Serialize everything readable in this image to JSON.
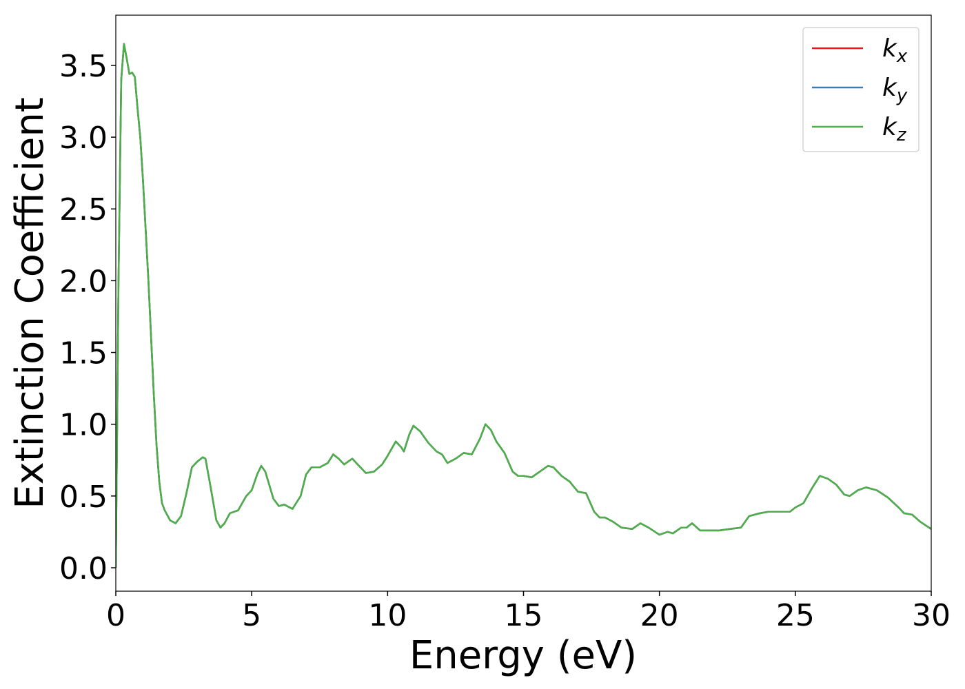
{
  "chart_data": {
    "type": "line",
    "xlabel": "Energy (eV)",
    "ylabel": "Extinction Coefficient",
    "x": [
      0,
      0.1,
      0.2,
      0.3,
      0.4,
      0.5,
      0.6,
      0.7,
      0.8,
      0.9,
      1.0,
      1.1,
      1.2,
      1.3,
      1.4,
      1.5,
      1.6,
      1.7,
      1.8,
      2.0,
      2.2,
      2.4,
      2.6,
      2.8,
      3.0,
      3.2,
      3.3,
      3.5,
      3.7,
      3.85,
      4.0,
      4.2,
      4.5,
      4.8,
      5.0,
      5.2,
      5.35,
      5.5,
      5.8,
      6.0,
      6.2,
      6.5,
      6.8,
      7.0,
      7.2,
      7.5,
      7.8,
      8.0,
      8.2,
      8.4,
      8.7,
      9.0,
      9.2,
      9.5,
      9.8,
      10.0,
      10.3,
      10.5,
      10.6,
      10.8,
      10.95,
      11.2,
      11.5,
      11.8,
      12.0,
      12.2,
      12.5,
      12.8,
      13.1,
      13.4,
      13.6,
      13.8,
      14.0,
      14.3,
      14.6,
      14.8,
      15.0,
      15.3,
      15.6,
      15.9,
      16.1,
      16.4,
      16.7,
      17.0,
      17.3,
      17.6,
      17.8,
      18.0,
      18.3,
      18.6,
      19.0,
      19.3,
      19.6,
      20.0,
      20.3,
      20.5,
      20.8,
      21.0,
      21.2,
      21.5,
      21.8,
      22.2,
      22.6,
      23.0,
      23.3,
      23.7,
      24.0,
      24.5,
      24.8,
      25.0,
      25.3,
      25.6,
      25.9,
      26.2,
      26.5,
      26.8,
      27.0,
      27.3,
      27.6,
      28.0,
      28.4,
      28.8,
      29.0,
      29.3,
      29.6,
      30.0
    ],
    "series": [
      {
        "name": "kx",
        "color": "#e41a1c",
        "values": [
          0,
          2.0,
          3.4,
          3.65,
          3.55,
          3.44,
          3.45,
          3.42,
          3.2,
          3.0,
          2.7,
          2.35,
          2.0,
          1.6,
          1.2,
          0.85,
          0.6,
          0.45,
          0.4,
          0.33,
          0.31,
          0.36,
          0.52,
          0.7,
          0.74,
          0.77,
          0.76,
          0.55,
          0.33,
          0.28,
          0.31,
          0.38,
          0.4,
          0.5,
          0.54,
          0.65,
          0.71,
          0.67,
          0.48,
          0.43,
          0.44,
          0.41,
          0.5,
          0.65,
          0.7,
          0.7,
          0.73,
          0.79,
          0.76,
          0.72,
          0.76,
          0.7,
          0.66,
          0.67,
          0.72,
          0.78,
          0.88,
          0.84,
          0.81,
          0.93,
          0.99,
          0.95,
          0.87,
          0.81,
          0.79,
          0.73,
          0.76,
          0.8,
          0.79,
          0.9,
          1.0,
          0.96,
          0.88,
          0.8,
          0.67,
          0.64,
          0.64,
          0.63,
          0.67,
          0.71,
          0.7,
          0.64,
          0.6,
          0.53,
          0.52,
          0.39,
          0.35,
          0.35,
          0.32,
          0.28,
          0.27,
          0.31,
          0.28,
          0.23,
          0.25,
          0.24,
          0.28,
          0.28,
          0.31,
          0.26,
          0.26,
          0.26,
          0.27,
          0.28,
          0.36,
          0.38,
          0.39,
          0.39,
          0.39,
          0.42,
          0.45,
          0.55,
          0.64,
          0.62,
          0.58,
          0.51,
          0.5,
          0.54,
          0.56,
          0.54,
          0.49,
          0.42,
          0.38,
          0.37,
          0.32,
          0.27
        ]
      },
      {
        "name": "ky",
        "color": "#377eb8",
        "values": [
          0,
          2.0,
          3.4,
          3.65,
          3.55,
          3.44,
          3.45,
          3.42,
          3.2,
          3.0,
          2.7,
          2.35,
          2.0,
          1.6,
          1.2,
          0.85,
          0.6,
          0.45,
          0.4,
          0.33,
          0.31,
          0.36,
          0.52,
          0.7,
          0.74,
          0.77,
          0.76,
          0.55,
          0.33,
          0.28,
          0.31,
          0.38,
          0.4,
          0.5,
          0.54,
          0.65,
          0.71,
          0.67,
          0.48,
          0.43,
          0.44,
          0.41,
          0.5,
          0.65,
          0.7,
          0.7,
          0.73,
          0.79,
          0.76,
          0.72,
          0.76,
          0.7,
          0.66,
          0.67,
          0.72,
          0.78,
          0.88,
          0.84,
          0.81,
          0.93,
          0.99,
          0.95,
          0.87,
          0.81,
          0.79,
          0.73,
          0.76,
          0.8,
          0.79,
          0.9,
          1.0,
          0.96,
          0.88,
          0.8,
          0.67,
          0.64,
          0.64,
          0.63,
          0.67,
          0.71,
          0.7,
          0.64,
          0.6,
          0.53,
          0.52,
          0.39,
          0.35,
          0.35,
          0.32,
          0.28,
          0.27,
          0.31,
          0.28,
          0.23,
          0.25,
          0.24,
          0.28,
          0.28,
          0.31,
          0.26,
          0.26,
          0.26,
          0.27,
          0.28,
          0.36,
          0.38,
          0.39,
          0.39,
          0.39,
          0.42,
          0.45,
          0.55,
          0.64,
          0.62,
          0.58,
          0.51,
          0.5,
          0.54,
          0.56,
          0.54,
          0.49,
          0.42,
          0.38,
          0.37,
          0.32,
          0.27
        ]
      },
      {
        "name": "kz",
        "color": "#4daf4a",
        "values": [
          0,
          2.0,
          3.4,
          3.65,
          3.55,
          3.44,
          3.45,
          3.42,
          3.2,
          3.0,
          2.7,
          2.35,
          2.0,
          1.6,
          1.2,
          0.85,
          0.6,
          0.45,
          0.4,
          0.33,
          0.31,
          0.36,
          0.52,
          0.7,
          0.74,
          0.77,
          0.76,
          0.55,
          0.33,
          0.28,
          0.31,
          0.38,
          0.4,
          0.5,
          0.54,
          0.65,
          0.71,
          0.67,
          0.48,
          0.43,
          0.44,
          0.41,
          0.5,
          0.65,
          0.7,
          0.7,
          0.73,
          0.79,
          0.76,
          0.72,
          0.76,
          0.7,
          0.66,
          0.67,
          0.72,
          0.78,
          0.88,
          0.84,
          0.81,
          0.93,
          0.99,
          0.95,
          0.87,
          0.81,
          0.79,
          0.73,
          0.76,
          0.8,
          0.79,
          0.9,
          1.0,
          0.96,
          0.88,
          0.8,
          0.67,
          0.64,
          0.64,
          0.63,
          0.67,
          0.71,
          0.7,
          0.64,
          0.6,
          0.53,
          0.52,
          0.39,
          0.35,
          0.35,
          0.32,
          0.28,
          0.27,
          0.31,
          0.28,
          0.23,
          0.25,
          0.24,
          0.28,
          0.28,
          0.31,
          0.26,
          0.26,
          0.26,
          0.27,
          0.28,
          0.36,
          0.38,
          0.39,
          0.39,
          0.39,
          0.42,
          0.45,
          0.55,
          0.64,
          0.62,
          0.58,
          0.51,
          0.5,
          0.54,
          0.56,
          0.54,
          0.49,
          0.42,
          0.38,
          0.37,
          0.32,
          0.27
        ]
      }
    ],
    "xlim": [
      0,
      30
    ],
    "xticks": [
      0,
      5,
      10,
      15,
      20,
      25,
      30
    ],
    "ylim": [
      -0.163,
      3.85
    ],
    "yticks": [
      {
        "value": 0,
        "label": "0.0"
      },
      0.5,
      {
        "value": 1,
        "label": "1.0"
      },
      1.5,
      {
        "value": 2,
        "label": "2.0"
      },
      2.5,
      {
        "value": 3,
        "label": "3.0"
      },
      3.5
    ],
    "grid": false,
    "legend": "upper right"
  }
}
